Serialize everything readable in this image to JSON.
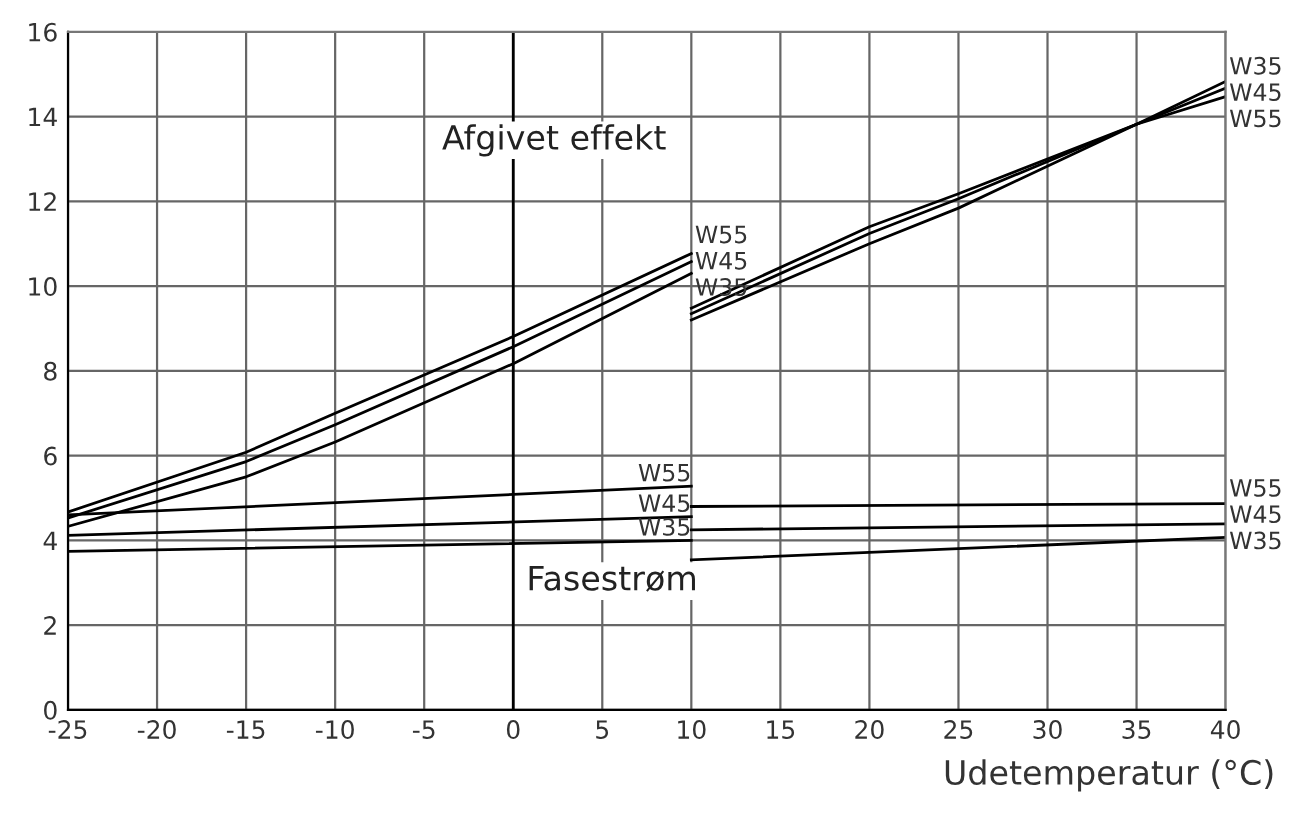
{
  "chart_data": {
    "type": "line",
    "xlabel": "Udetemperatur (°C)",
    "xlim": [
      -25,
      40
    ],
    "xticks": [
      -25,
      -20,
      -15,
      -10,
      -5,
      0,
      5,
      10,
      15,
      20,
      25,
      30,
      35,
      40
    ],
    "ylim": [
      0,
      16
    ],
    "yticks": [
      0,
      2,
      4,
      6,
      8,
      10,
      12,
      14,
      16
    ],
    "grid": true,
    "legend": false,
    "marker": "none",
    "line_style": "solid",
    "ref_lines": [
      {
        "axis": "x",
        "value": 0,
        "color": "#000000"
      }
    ],
    "annotations": [
      "Afgivet effekt",
      "Fasestrøm"
    ],
    "series": [
      {
        "name": "W55",
        "color": "#000000",
        "x": [
          -25,
          -15,
          -10,
          0,
          10
        ],
        "values": [
          4.67,
          6.08,
          7.0,
          8.81,
          10.77
        ]
      },
      {
        "name": "W45",
        "color": "#000000",
        "x": [
          -25,
          -15,
          -10,
          0,
          10
        ],
        "values": [
          4.53,
          5.86,
          6.73,
          8.57,
          10.58
        ]
      },
      {
        "name": "W35",
        "color": "#000000",
        "x": [
          -25,
          -15,
          -10,
          0,
          10
        ],
        "values": [
          4.33,
          5.5,
          6.32,
          8.17,
          10.3
        ]
      },
      {
        "name": "W35",
        "color": "#000000",
        "x": [
          10,
          20,
          25,
          35,
          40
        ],
        "values": [
          9.2,
          11.0,
          11.84,
          13.82,
          14.83
        ]
      },
      {
        "name": "W45",
        "color": "#000000",
        "x": [
          10,
          20,
          25,
          35,
          40
        ],
        "values": [
          9.35,
          11.24,
          12.06,
          13.82,
          14.67
        ]
      },
      {
        "name": "W55",
        "color": "#000000",
        "x": [
          10,
          20,
          25,
          35,
          40
        ],
        "values": [
          9.48,
          11.4,
          12.18,
          13.82,
          14.47
        ]
      },
      {
        "name": "W55",
        "color": "#000000",
        "x": [
          -25,
          10
        ],
        "values": [
          4.6,
          5.28
        ]
      },
      {
        "name": "W45",
        "color": "#000000",
        "x": [
          -25,
          10
        ],
        "values": [
          4.12,
          4.56
        ]
      },
      {
        "name": "W35",
        "color": "#000000",
        "x": [
          -25,
          10
        ],
        "values": [
          3.74,
          4.0
        ]
      },
      {
        "name": "W55",
        "color": "#000000",
        "x": [
          10,
          40
        ],
        "values": [
          4.8,
          4.87
        ]
      },
      {
        "name": "W45",
        "color": "#000000",
        "x": [
          10,
          40
        ],
        "values": [
          4.25,
          4.39
        ]
      },
      {
        "name": "W35",
        "color": "#000000",
        "x": [
          10,
          40
        ],
        "values": [
          3.54,
          4.07
        ]
      }
    ]
  }
}
